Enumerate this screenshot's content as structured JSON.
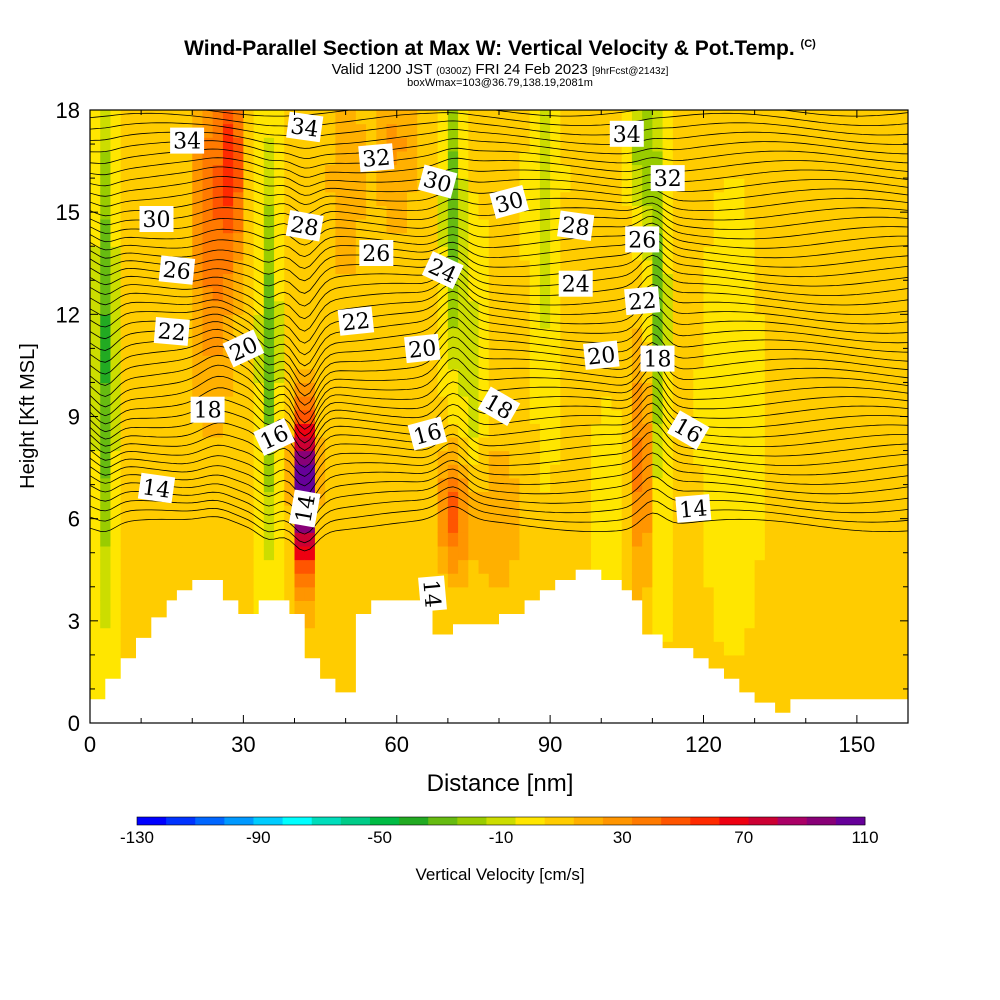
{
  "header": {
    "title": "Wind-Parallel Section at Max W: Vertical Velocity & Pot.Temp.",
    "copyright": "(C)",
    "valid_prefix": "Valid 1200 JST",
    "valid_utc": "(0300Z)",
    "valid_date": "FRI 24 Feb 2023",
    "forecast": "[9hrFcst@2143z]",
    "box_info": "boxWmax=103@36.79,138.19,2081m"
  },
  "chart_data": {
    "type": "heatmap",
    "title": "Wind-Parallel Section at Max W: Vertical Velocity & Pot.Temp.",
    "xlabel": "Distance [nm]",
    "ylabel": "Height [Kft MSL]",
    "xlim": [
      0,
      160
    ],
    "ylim": [
      0,
      18
    ],
    "x_ticks": [
      0,
      30,
      60,
      90,
      120,
      150
    ],
    "y_ticks": [
      0,
      3,
      6,
      9,
      12,
      15,
      18
    ],
    "colorbar": {
      "label": "Vertical Velocity [cm/s]",
      "tick_labels": [
        "-130",
        "-90",
        "-50",
        "-10",
        "30",
        "70",
        "110"
      ],
      "tick_values": [
        -130,
        -90,
        -50,
        -10,
        30,
        70,
        110
      ],
      "colors": [
        "#0000ff",
        "#0033ff",
        "#0066ff",
        "#0099ff",
        "#00ccff",
        "#00ffff",
        "#00ddbb",
        "#00cc88",
        "#00bb44",
        "#22aa22",
        "#66bb11",
        "#99cc00",
        "#ccdd00",
        "#ffe600",
        "#ffcc00",
        "#ffb000",
        "#ff9500",
        "#ff7a00",
        "#ff5500",
        "#ff2a00",
        "#ee0011",
        "#cc0033",
        "#aa0066",
        "#880077",
        "#660099"
      ]
    },
    "terrain_kft": [
      [
        0,
        0.7
      ],
      [
        3,
        0.7
      ],
      [
        3,
        1.3
      ],
      [
        6,
        1.3
      ],
      [
        6,
        1.9
      ],
      [
        9,
        1.9
      ],
      [
        9,
        2.5
      ],
      [
        12,
        2.5
      ],
      [
        12,
        3.1
      ],
      [
        15,
        3.1
      ],
      [
        15,
        3.6
      ],
      [
        17,
        3.6
      ],
      [
        17,
        3.9
      ],
      [
        20,
        3.9
      ],
      [
        20,
        4.2
      ],
      [
        26,
        4.2
      ],
      [
        26,
        3.6
      ],
      [
        29,
        3.6
      ],
      [
        29,
        3.2
      ],
      [
        33,
        3.2
      ],
      [
        33,
        3.6
      ],
      [
        39,
        3.6
      ],
      [
        39,
        3.2
      ],
      [
        42,
        3.2
      ],
      [
        42,
        1.9
      ],
      [
        45,
        1.9
      ],
      [
        45,
        1.3
      ],
      [
        48,
        1.3
      ],
      [
        48,
        0.9
      ],
      [
        52,
        0.9
      ],
      [
        52,
        3.2
      ],
      [
        55,
        3.2
      ],
      [
        55,
        3.6
      ],
      [
        67,
        3.6
      ],
      [
        67,
        2.6
      ],
      [
        71,
        2.6
      ],
      [
        71,
        2.9
      ],
      [
        80,
        2.9
      ],
      [
        80,
        3.2
      ],
      [
        85,
        3.2
      ],
      [
        85,
        3.6
      ],
      [
        88,
        3.6
      ],
      [
        88,
        3.9
      ],
      [
        91,
        3.9
      ],
      [
        91,
        4.2
      ],
      [
        95,
        4.2
      ],
      [
        95,
        4.5
      ],
      [
        100,
        4.5
      ],
      [
        100,
        4.2
      ],
      [
        104,
        4.2
      ],
      [
        104,
        3.9
      ],
      [
        106,
        3.9
      ],
      [
        106,
        3.6
      ],
      [
        108,
        3.6
      ],
      [
        108,
        2.6
      ],
      [
        112,
        2.6
      ],
      [
        112,
        2.2
      ],
      [
        118,
        2.2
      ],
      [
        118,
        1.9
      ],
      [
        121,
        1.9
      ],
      [
        121,
        1.6
      ],
      [
        124,
        1.6
      ],
      [
        124,
        1.3
      ],
      [
        127,
        1.3
      ],
      [
        127,
        0.9
      ],
      [
        130,
        0.9
      ],
      [
        130,
        0.6
      ],
      [
        134,
        0.6
      ],
      [
        134,
        0.3
      ],
      [
        137,
        0.3
      ],
      [
        137,
        0.7
      ],
      [
        160,
        0.7
      ]
    ],
    "velocity_features": [
      {
        "x": 3,
        "y": 11,
        "value": -40,
        "sx": 1.3,
        "sy": 5
      },
      {
        "x": 24,
        "y": 15,
        "value": 35,
        "sx": 3,
        "sy": 4
      },
      {
        "x": 28,
        "y": 16.5,
        "value": 40,
        "sx": 1.6,
        "sy": 2
      },
      {
        "x": 35,
        "y": 11,
        "value": -35,
        "sx": 1.3,
        "sy": 4
      },
      {
        "x": 42,
        "y": 6.2,
        "value": 105,
        "sx": 1.0,
        "sy": 1.6
      },
      {
        "x": 42,
        "y": 7.5,
        "value": 60,
        "sx": 1.6,
        "sy": 1.5
      },
      {
        "x": 50,
        "y": 16,
        "value": 15,
        "sx": 3,
        "sy": 3
      },
      {
        "x": 60,
        "y": 17,
        "value": 20,
        "sx": 3,
        "sy": 2
      },
      {
        "x": 71,
        "y": 15,
        "value": -35,
        "sx": 1.3,
        "sy": 3
      },
      {
        "x": 75,
        "y": 10,
        "value": -20,
        "sx": 1.6,
        "sy": 2
      },
      {
        "x": 71,
        "y": 6.2,
        "value": 40,
        "sx": 2.2,
        "sy": 1.3
      },
      {
        "x": 80,
        "y": 6,
        "value": 15,
        "sx": 4,
        "sy": 2
      },
      {
        "x": 89,
        "y": 15,
        "value": -15,
        "sx": 1.6,
        "sy": 4
      },
      {
        "x": 101,
        "y": 8,
        "value": -15,
        "sx": 2,
        "sy": 2
      },
      {
        "x": 108,
        "y": 7.5,
        "value": 35,
        "sx": 1.6,
        "sy": 2.5
      },
      {
        "x": 111,
        "y": 12,
        "value": -35,
        "sx": 1.3,
        "sy": 4
      },
      {
        "x": 108,
        "y": 17,
        "value": -30,
        "sx": 1.3,
        "sy": 1.5
      },
      {
        "x": 126,
        "y": 9,
        "value": -10,
        "sx": 3,
        "sy": 3
      },
      {
        "x": 140,
        "y": 11,
        "value": 5,
        "sx": 5,
        "sy": 4
      },
      {
        "x": 100,
        "y": 10,
        "value": 10,
        "sx": 4,
        "sy": 2
      }
    ],
    "theta_levels": [
      13,
      13.5,
      14,
      14.5,
      15,
      15.5,
      16,
      16.5,
      17,
      17.5,
      18,
      18.5,
      19,
      19.5,
      20,
      20.5,
      21,
      21.5,
      22,
      22.5,
      23,
      23.5,
      24,
      24.5,
      25,
      25.5,
      26,
      26.5,
      27,
      27.5,
      28,
      28.5,
      29,
      29.5,
      30,
      30.5,
      31,
      31.5,
      32,
      32.5,
      33,
      33.5,
      34,
      34.5,
      35
    ],
    "theta_labels": [
      {
        "text": "34",
        "x": 19,
        "y": 17.1,
        "angle": 0
      },
      {
        "text": "34",
        "x": 42,
        "y": 17.5,
        "angle": 8
      },
      {
        "text": "34",
        "x": 105,
        "y": 17.3,
        "angle": 0
      },
      {
        "text": "32",
        "x": 56,
        "y": 16.6,
        "angle": -5
      },
      {
        "text": "32",
        "x": 113,
        "y": 16.0,
        "angle": 0
      },
      {
        "text": "30",
        "x": 13,
        "y": 14.8,
        "angle": 0
      },
      {
        "text": "30",
        "x": 68,
        "y": 15.9,
        "angle": 15
      },
      {
        "text": "30",
        "x": 82,
        "y": 15.3,
        "angle": -15
      },
      {
        "text": "28",
        "x": 42,
        "y": 14.6,
        "angle": 10
      },
      {
        "text": "28",
        "x": 95,
        "y": 14.6,
        "angle": 8
      },
      {
        "text": "26",
        "x": 17,
        "y": 13.3,
        "angle": 6
      },
      {
        "text": "26",
        "x": 56,
        "y": 13.8,
        "angle": 0
      },
      {
        "text": "26",
        "x": 108,
        "y": 14.2,
        "angle": 0
      },
      {
        "text": "24",
        "x": 69,
        "y": 13.3,
        "angle": 25
      },
      {
        "text": "24",
        "x": 95,
        "y": 12.9,
        "angle": 0
      },
      {
        "text": "22",
        "x": 16,
        "y": 11.5,
        "angle": 5
      },
      {
        "text": "22",
        "x": 52,
        "y": 11.8,
        "angle": -6
      },
      {
        "text": "22",
        "x": 108,
        "y": 12.4,
        "angle": -5
      },
      {
        "text": "20",
        "x": 30,
        "y": 11.0,
        "angle": -25
      },
      {
        "text": "20",
        "x": 65,
        "y": 11.0,
        "angle": -6
      },
      {
        "text": "20",
        "x": 100,
        "y": 10.8,
        "angle": -6
      },
      {
        "text": "18",
        "x": 23,
        "y": 9.2,
        "angle": 0
      },
      {
        "text": "18",
        "x": 80,
        "y": 9.3,
        "angle": 30
      },
      {
        "text": "18",
        "x": 111,
        "y": 10.7,
        "angle": 0
      },
      {
        "text": "16",
        "x": 36,
        "y": 8.4,
        "angle": -25
      },
      {
        "text": "16",
        "x": 66,
        "y": 8.5,
        "angle": -15
      },
      {
        "text": "16",
        "x": 117,
        "y": 8.6,
        "angle": 30
      },
      {
        "text": "14",
        "x": 13,
        "y": 6.9,
        "angle": 8
      },
      {
        "text": "14",
        "x": 42,
        "y": 6.3,
        "angle": -80
      },
      {
        "text": "14",
        "x": 118,
        "y": 6.3,
        "angle": -5
      },
      {
        "text": "14",
        "x": 67,
        "y": 3.8,
        "angle": 85
      }
    ]
  }
}
